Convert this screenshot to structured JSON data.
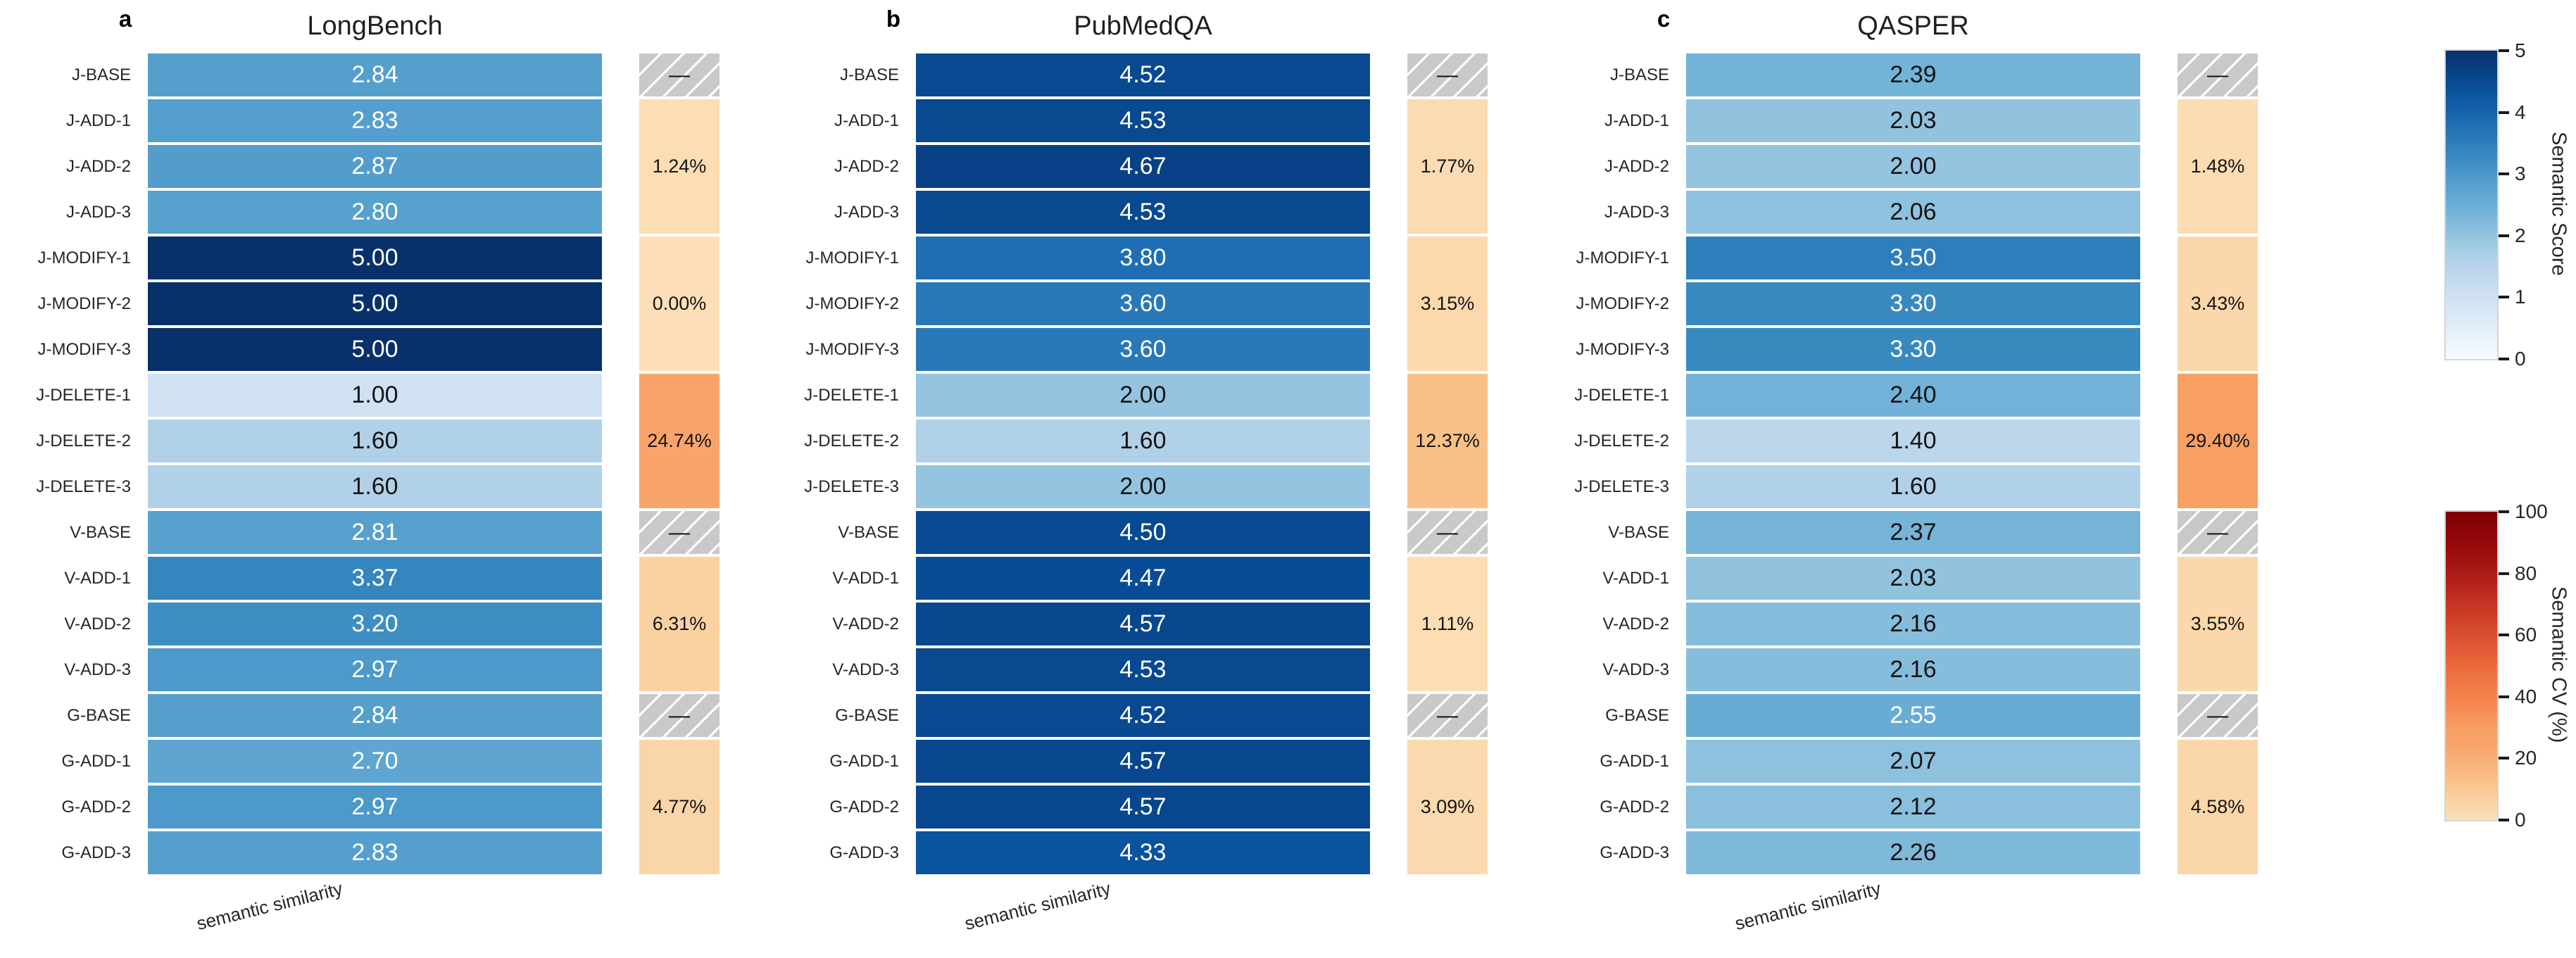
{
  "na_label": "—",
  "chart_data": [
    {
      "type": "heatmap",
      "panel_label": "a",
      "title": "LongBench",
      "xlabel": "semantic similarity",
      "columns": [
        "semantic similarity"
      ],
      "rows": [
        "J-BASE",
        "J-ADD-1",
        "J-ADD-2",
        "J-ADD-3",
        "J-MODIFY-1",
        "J-MODIFY-2",
        "J-MODIFY-3",
        "J-DELETE-1",
        "J-DELETE-2",
        "J-DELETE-3",
        "V-BASE",
        "V-ADD-1",
        "V-ADD-2",
        "V-ADD-3",
        "G-BASE",
        "G-ADD-1",
        "G-ADD-2",
        "G-ADD-3"
      ],
      "values": [
        2.84,
        2.83,
        2.87,
        2.8,
        5.0,
        5.0,
        5.0,
        1.0,
        1.6,
        1.6,
        2.81,
        3.37,
        3.2,
        2.97,
        2.84,
        2.7,
        2.97,
        2.83
      ],
      "value_labels": [
        "2.84",
        "2.83",
        "2.87",
        "2.80",
        "5.00",
        "5.00",
        "5.00",
        "1.00",
        "1.60",
        "1.60",
        "2.81",
        "3.37",
        "3.20",
        "2.97",
        "2.84",
        "2.70",
        "2.97",
        "2.83"
      ],
      "vmin": 0,
      "vmax": 5,
      "colormap": "Blues",
      "cv_column": {
        "spans": [
          1,
          3,
          3,
          3,
          1,
          3,
          1,
          3
        ],
        "values": [
          null,
          1.24,
          0.0,
          24.74,
          null,
          6.31,
          null,
          4.77
        ],
        "labels": [
          "—",
          "1.24%",
          "0.00%",
          "24.74%",
          "—",
          "6.31%",
          "—",
          "4.77%"
        ]
      }
    },
    {
      "type": "heatmap",
      "panel_label": "b",
      "title": "PubMedQA",
      "xlabel": "semantic similarity",
      "columns": [
        "semantic similarity"
      ],
      "rows": [
        "J-BASE",
        "J-ADD-1",
        "J-ADD-2",
        "J-ADD-3",
        "J-MODIFY-1",
        "J-MODIFY-2",
        "J-MODIFY-3",
        "J-DELETE-1",
        "J-DELETE-2",
        "J-DELETE-3",
        "V-BASE",
        "V-ADD-1",
        "V-ADD-2",
        "V-ADD-3",
        "G-BASE",
        "G-ADD-1",
        "G-ADD-2",
        "G-ADD-3"
      ],
      "values": [
        4.52,
        4.53,
        4.67,
        4.53,
        3.8,
        3.6,
        3.6,
        2.0,
        1.6,
        2.0,
        4.5,
        4.47,
        4.57,
        4.53,
        4.52,
        4.57,
        4.57,
        4.33
      ],
      "value_labels": [
        "4.52",
        "4.53",
        "4.67",
        "4.53",
        "3.80",
        "3.60",
        "3.60",
        "2.00",
        "1.60",
        "2.00",
        "4.50",
        "4.47",
        "4.57",
        "4.53",
        "4.52",
        "4.57",
        "4.57",
        "4.33"
      ],
      "vmin": 0,
      "vmax": 5,
      "colormap": "Blues",
      "cv_column": {
        "spans": [
          1,
          3,
          3,
          3,
          1,
          3,
          1,
          3
        ],
        "values": [
          null,
          1.77,
          3.15,
          12.37,
          null,
          1.11,
          null,
          3.09
        ],
        "labels": [
          "—",
          "1.77%",
          "3.15%",
          "12.37%",
          "—",
          "1.11%",
          "—",
          "3.09%"
        ]
      }
    },
    {
      "type": "heatmap",
      "panel_label": "c",
      "title": "QASPER",
      "xlabel": "semantic similarity",
      "columns": [
        "semantic similarity"
      ],
      "rows": [
        "J-BASE",
        "J-ADD-1",
        "J-ADD-2",
        "J-ADD-3",
        "J-MODIFY-1",
        "J-MODIFY-2",
        "J-MODIFY-3",
        "J-DELETE-1",
        "J-DELETE-2",
        "J-DELETE-3",
        "V-BASE",
        "V-ADD-1",
        "V-ADD-2",
        "V-ADD-3",
        "G-BASE",
        "G-ADD-1",
        "G-ADD-2",
        "G-ADD-3"
      ],
      "values": [
        2.39,
        2.03,
        2.0,
        2.06,
        3.5,
        3.3,
        3.3,
        2.4,
        1.4,
        1.6,
        2.37,
        2.03,
        2.16,
        2.16,
        2.55,
        2.07,
        2.12,
        2.26
      ],
      "value_labels": [
        "2.39",
        "2.03",
        "2.00",
        "2.06",
        "3.50",
        "3.30",
        "3.30",
        "2.40",
        "1.40",
        "1.60",
        "2.37",
        "2.03",
        "2.16",
        "2.16",
        "2.55",
        "2.07",
        "2.12",
        "2.26"
      ],
      "vmin": 0,
      "vmax": 5,
      "colormap": "Blues",
      "cv_column": {
        "spans": [
          1,
          3,
          3,
          3,
          1,
          3,
          1,
          3
        ],
        "values": [
          null,
          1.48,
          3.43,
          29.4,
          null,
          3.55,
          null,
          4.58
        ],
        "labels": [
          "—",
          "1.48%",
          "3.43%",
          "29.40%",
          "—",
          "3.55%",
          "—",
          "4.58%"
        ]
      }
    }
  ],
  "legend": {
    "colorbars": [
      {
        "label": "Semantic Score",
        "tick_labels": [
          "5",
          "4",
          "3",
          "2",
          "1",
          "0"
        ],
        "range": [
          0,
          5
        ]
      },
      {
        "label": "Semantic CV (%)",
        "tick_labels": [
          "100",
          "80",
          "60",
          "40",
          "20",
          "0"
        ],
        "range": [
          0,
          100
        ]
      }
    ]
  },
  "colors": {
    "blues_colormap": [
      "#f7fbff",
      "#deebf7",
      "#c6dbef",
      "#9ecae1",
      "#6baed6",
      "#4292c6",
      "#2171b5",
      "#08519c",
      "#08306b"
    ],
    "cv_colormap": [
      [
        0,
        "#fcdfb8"
      ],
      [
        0.03,
        "#fbd9ae"
      ],
      [
        0.063,
        "#fad2a2"
      ],
      [
        0.124,
        "#f9c188"
      ],
      [
        0.247,
        "#f9a46c"
      ],
      [
        0.294,
        "#f89f64"
      ],
      [
        0.4,
        "#f3824a"
      ],
      [
        0.5,
        "#ea6a3c"
      ],
      [
        0.6,
        "#d94f30"
      ],
      [
        0.7,
        "#c43524"
      ],
      [
        0.8,
        "#ab1b16"
      ],
      [
        0.9,
        "#94080b"
      ],
      [
        1,
        "#7f0000"
      ]
    ],
    "hatch_fill": "#c9c9c9",
    "hatch_stripe": "#ffffff",
    "annot_dark": "#151515",
    "annot_light": "#ffffff",
    "label_color": "#262626"
  }
}
